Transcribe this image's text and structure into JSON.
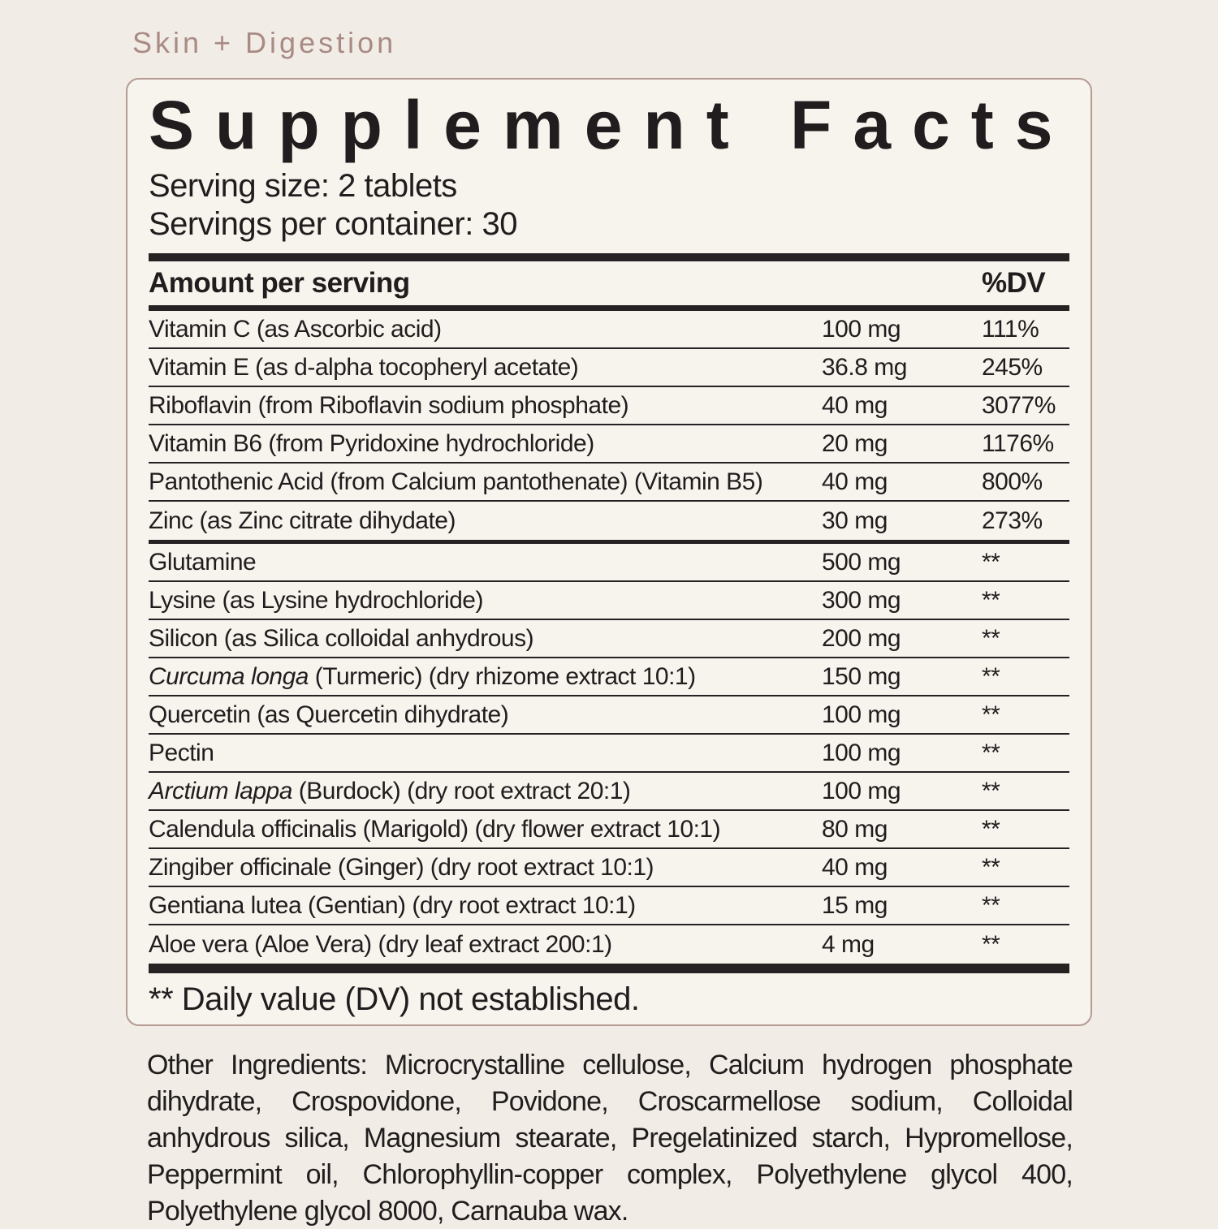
{
  "kicker": "Skin + Digestion",
  "panel": {
    "title": "Supplement Facts",
    "serving_size": "Serving size: 2 tablets",
    "servings_per_container": "Servings per container: 30",
    "header": {
      "amount_label": "Amount per serving",
      "dv_label": "%DV"
    },
    "rows": [
      {
        "name_italic": "",
        "name_rest": "Vitamin C (as Ascorbic acid)",
        "amount": "100 mg",
        "dv": "111%"
      },
      {
        "name_italic": "",
        "name_rest": "Vitamin E (as d-alpha tocopheryl acetate)",
        "amount": "36.8 mg",
        "dv": "245%"
      },
      {
        "name_italic": "",
        "name_rest": "Riboflavin (from Riboflavin sodium phosphate)",
        "amount": "40 mg",
        "dv": "3077%"
      },
      {
        "name_italic": "",
        "name_rest": "Vitamin B6 (from Pyridoxine hydrochloride)",
        "amount": "20 mg",
        "dv": "1176%"
      },
      {
        "name_italic": "",
        "name_rest": "Pantothenic Acid (from Calcium pantothenate) (Vitamin B5)",
        "amount": "40 mg",
        "dv": "800%"
      },
      {
        "name_italic": "",
        "name_rest": "Zinc (as Zinc citrate dihydate)",
        "amount": "30 mg",
        "dv": "273%",
        "section_end": true
      },
      {
        "name_italic": "",
        "name_rest": "Glutamine",
        "amount": "500 mg",
        "dv": "**"
      },
      {
        "name_italic": "",
        "name_rest": "Lysine (as Lysine hydrochloride)",
        "amount": "300 mg",
        "dv": "**"
      },
      {
        "name_italic": "",
        "name_rest": "Silicon (as Silica colloidal anhydrous)",
        "amount": "200 mg",
        "dv": "**"
      },
      {
        "name_italic": "Curcuma longa",
        "name_rest": " (Turmeric) (dry rhizome extract 10:1)",
        "amount": "150 mg",
        "dv": "**"
      },
      {
        "name_italic": "",
        "name_rest": "Quercetin (as Quercetin dihydrate)",
        "amount": "100 mg",
        "dv": "**"
      },
      {
        "name_italic": "",
        "name_rest": "Pectin",
        "amount": "100 mg",
        "dv": "**"
      },
      {
        "name_italic": "Arctium lappa",
        "name_rest": " (Burdock) (dry root extract 20:1)",
        "amount": "100 mg",
        "dv": "**"
      },
      {
        "name_italic": "",
        "name_rest": "Calendula officinalis (Marigold) (dry flower extract 10:1)",
        "amount": "80 mg",
        "dv": "**"
      },
      {
        "name_italic": "",
        "name_rest": "Zingiber officinale (Ginger) (dry root extract 10:1)",
        "amount": "40 mg",
        "dv": "**"
      },
      {
        "name_italic": "",
        "name_rest": "Gentiana lutea (Gentian) (dry root extract 10:1)",
        "amount": "15 mg",
        "dv": "**"
      },
      {
        "name_italic": "",
        "name_rest": "Aloe vera (Aloe Vera) (dry leaf extract 200:1)",
        "amount": "4 mg",
        "dv": "**"
      }
    ],
    "footnote": "** Daily value (DV) not established."
  },
  "other_ingredients": "Other Ingredients: Microcrystalline cellulose, Calcium hydrogen phosphate dihydrate, Crospovidone, Povidone, Croscarmellose sodium, Colloidal anhydrous silica, Magnesium stearate, Pregelatinized starch, Hypromellose, Peppermint oil, Chlorophyllin-copper complex, Polyethylene glycol 400, Polyethylene glycol 8000, Carnauba wax.",
  "colors": {
    "page_bg": "#f1ede6",
    "panel_bg": "#f7f4ee",
    "panel_border": "#b59b93",
    "accent_text": "#a98a84",
    "ink": "#211d1e"
  }
}
